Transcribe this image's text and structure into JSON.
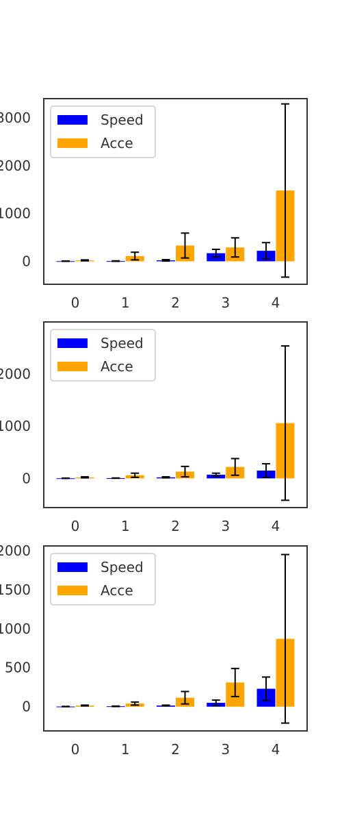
{
  "colors": {
    "speed": "#0000ff",
    "acce": "#ffa500",
    "errorbar": "#000000",
    "frame": "#333333"
  },
  "chart_data": [
    {
      "type": "bar",
      "categories": [
        "0",
        "1",
        "2",
        "3",
        "4"
      ],
      "ylim": [
        -480,
        3400
      ],
      "yticks": [
        0,
        1000,
        2000,
        3000
      ],
      "ytick_labels": [
        "0",
        "1000",
        "2000",
        "3000"
      ],
      "legend": "top-left",
      "series": [
        {
          "name": "Speed",
          "color": "#0000ff",
          "values": [
            3,
            5,
            20,
            170,
            220
          ],
          "errors": [
            3,
            5,
            15,
            80,
            170
          ]
        },
        {
          "name": "Acce",
          "color": "#ffa500",
          "values": [
            20,
            110,
            330,
            290,
            1480
          ],
          "errors": [
            10,
            80,
            260,
            200,
            1810
          ]
        }
      ]
    },
    {
      "type": "bar",
      "categories": [
        "0",
        "1",
        "2",
        "3",
        "4"
      ],
      "ylim": [
        -560,
        3000
      ],
      "yticks": [
        0,
        1000,
        2000
      ],
      "ytick_labels": [
        "0",
        "1000",
        "2000"
      ],
      "legend": "top-left",
      "series": [
        {
          "name": "Speed",
          "color": "#0000ff",
          "values": [
            2,
            5,
            20,
            70,
            150
          ],
          "errors": [
            2,
            3,
            10,
            30,
            130
          ]
        },
        {
          "name": "Acce",
          "color": "#ffa500",
          "values": [
            20,
            60,
            130,
            220,
            1060
          ],
          "errors": [
            10,
            40,
            100,
            160,
            1480
          ]
        }
      ]
    },
    {
      "type": "bar",
      "categories": [
        "0",
        "1",
        "2",
        "3",
        "4"
      ],
      "ylim": [
        -310,
        2060
      ],
      "yticks": [
        0,
        500,
        1000,
        1500,
        2000
      ],
      "ytick_labels": [
        "0",
        "500",
        "1000",
        "1500",
        "2000"
      ],
      "legend": "top-left",
      "series": [
        {
          "name": "Speed",
          "color": "#0000ff",
          "values": [
            2,
            5,
            15,
            50,
            230
          ],
          "errors": [
            2,
            3,
            5,
            35,
            150
          ]
        },
        {
          "name": "Acce",
          "color": "#ffa500",
          "values": [
            15,
            40,
            115,
            310,
            870
          ],
          "errors": [
            5,
            20,
            80,
            180,
            1080
          ]
        }
      ]
    }
  ]
}
